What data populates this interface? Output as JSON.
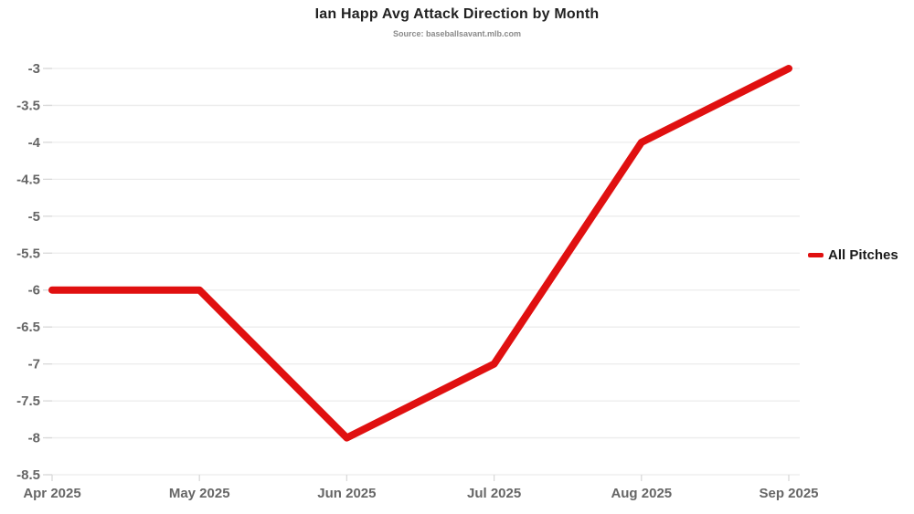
{
  "title": "Ian Happ Avg Attack Direction by Month",
  "subtitle": "Source: baseballsavant.mlb.com",
  "legend": {
    "label": "All Pitches"
  },
  "colors": {
    "series_red": "#e01010",
    "grid": "#ececec",
    "tick": "#d9d9d9",
    "axis_label": "#666666",
    "title_text": "#222222",
    "background": "#ffffff"
  },
  "chart_data": {
    "type": "line",
    "title": "Ian Happ Avg Attack Direction by Month",
    "subtitle": "Source: baseballsavant.mlb.com",
    "categories": [
      "Apr 2025",
      "May 2025",
      "Jun 2025",
      "Jul 2025",
      "Aug 2025",
      "Sep 2025"
    ],
    "series": [
      {
        "name": "All Pitches",
        "values": [
          -6,
          -6,
          -8,
          -7,
          -4,
          -3
        ],
        "color": "#e01010",
        "line_width": 8
      }
    ],
    "xlabel": "",
    "ylabel": "",
    "ylim": [
      -8.5,
      -3
    ],
    "yticks": [
      -3,
      -3.5,
      -4,
      -4.5,
      -5,
      -5.5,
      -6,
      -6.5,
      -7,
      -7.5,
      -8,
      -8.5
    ],
    "grid": "horizontal",
    "legend_position": "right"
  }
}
